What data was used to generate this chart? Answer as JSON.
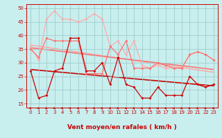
{
  "title": "",
  "xlabel": "Vent moyen/en rafales ( km/h )",
  "background_color": "#c8eeee",
  "grid_color": "#a0cccc",
  "xlim": [
    -0.5,
    23.5
  ],
  "ylim": [
    13.5,
    51.5
  ],
  "yticks": [
    15,
    20,
    25,
    30,
    35,
    40,
    45,
    50
  ],
  "xticks": [
    0,
    1,
    2,
    3,
    4,
    5,
    6,
    7,
    8,
    9,
    10,
    11,
    12,
    13,
    14,
    15,
    16,
    17,
    18,
    19,
    20,
    21,
    22,
    23
  ],
  "line_dark": {
    "x": [
      0,
      1,
      2,
      3,
      4,
      5,
      6,
      7,
      8,
      9,
      10,
      11,
      12,
      13,
      14,
      15,
      16,
      17,
      18,
      19,
      20,
      21,
      22,
      23
    ],
    "y": [
      27,
      17,
      18,
      27,
      28,
      39,
      39,
      27,
      27,
      30,
      22,
      32,
      22,
      21,
      17,
      17,
      21,
      18,
      18,
      18,
      25,
      22,
      21,
      22
    ],
    "color": "#cc0000",
    "lw": 0.9,
    "ms": 2.0
  },
  "line_mid": {
    "x": [
      0,
      1,
      2,
      3,
      4,
      5,
      6,
      7,
      8,
      9,
      10,
      11,
      12,
      13,
      14,
      15,
      16,
      17,
      18,
      19,
      20,
      21,
      22,
      23
    ],
    "y": [
      35,
      32,
      39,
      38,
      38,
      38,
      38,
      26,
      26,
      26,
      36,
      33,
      38,
      28,
      28,
      28,
      30,
      29,
      28,
      28,
      33,
      34,
      33,
      31
    ],
    "color": "#ff7070",
    "lw": 0.9,
    "ms": 2.0
  },
  "line_light": {
    "x": [
      0,
      1,
      2,
      3,
      4,
      5,
      6,
      7,
      8,
      9,
      10,
      11,
      12,
      13,
      14,
      15,
      16,
      17,
      18,
      19,
      20,
      21,
      22,
      23
    ],
    "y": [
      36,
      31,
      46,
      49,
      46,
      46,
      45,
      46,
      48,
      46,
      36,
      38,
      33,
      38,
      29,
      28,
      29,
      28,
      28,
      28,
      33,
      34,
      33,
      31
    ],
    "color": "#ffaaaa",
    "lw": 0.9,
    "ms": 2.0
  },
  "trend_light": {
    "x": [
      0,
      23
    ],
    "y": [
      36.5,
      26.5
    ],
    "color": "#ffaaaa",
    "lw": 1.2
  },
  "trend_mid": {
    "x": [
      0,
      23
    ],
    "y": [
      35.5,
      27.5
    ],
    "color": "#ff7070",
    "lw": 1.2
  },
  "trend_dark": {
    "x": [
      0,
      23
    ],
    "y": [
      27.5,
      21.5
    ],
    "color": "#cc0000",
    "lw": 1.2
  },
  "tick_color": "#cc0000",
  "label_fontsize": 5.0,
  "xlabel_fontsize": 6.5
}
